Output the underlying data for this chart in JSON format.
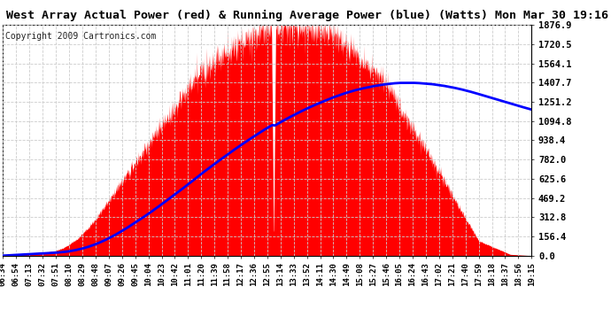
{
  "title": "West Array Actual Power (red) & Running Average Power (blue) (Watts) Mon Mar 30 19:16",
  "copyright": "Copyright 2009 Cartronics.com",
  "y_ticks": [
    0.0,
    156.4,
    312.8,
    469.2,
    625.6,
    782.0,
    938.4,
    1094.8,
    1251.2,
    1407.7,
    1564.1,
    1720.5,
    1876.9
  ],
  "x_labels": [
    "06:34",
    "06:54",
    "07:13",
    "07:32",
    "07:51",
    "08:10",
    "08:29",
    "08:48",
    "09:07",
    "09:26",
    "09:45",
    "10:04",
    "10:23",
    "10:42",
    "11:01",
    "11:20",
    "11:39",
    "11:58",
    "12:17",
    "12:36",
    "12:55",
    "13:14",
    "13:33",
    "13:52",
    "14:11",
    "14:30",
    "14:49",
    "15:08",
    "15:27",
    "15:46",
    "16:05",
    "16:24",
    "16:43",
    "17:02",
    "17:21",
    "17:40",
    "17:59",
    "18:18",
    "18:37",
    "18:56",
    "19:15"
  ],
  "ymax": 1876.9,
  "background_color": "#ffffff",
  "plot_bg_color": "#ffffff",
  "grid_color": "#cccccc",
  "red_color": "#ff0000",
  "blue_color": "#0000ff",
  "title_color": "#000000",
  "title_fontsize": 9.5,
  "copyright_fontsize": 7,
  "tick_fontsize": 7.5,
  "xtick_fontsize": 6.5,
  "blue_linewidth": 2.0
}
